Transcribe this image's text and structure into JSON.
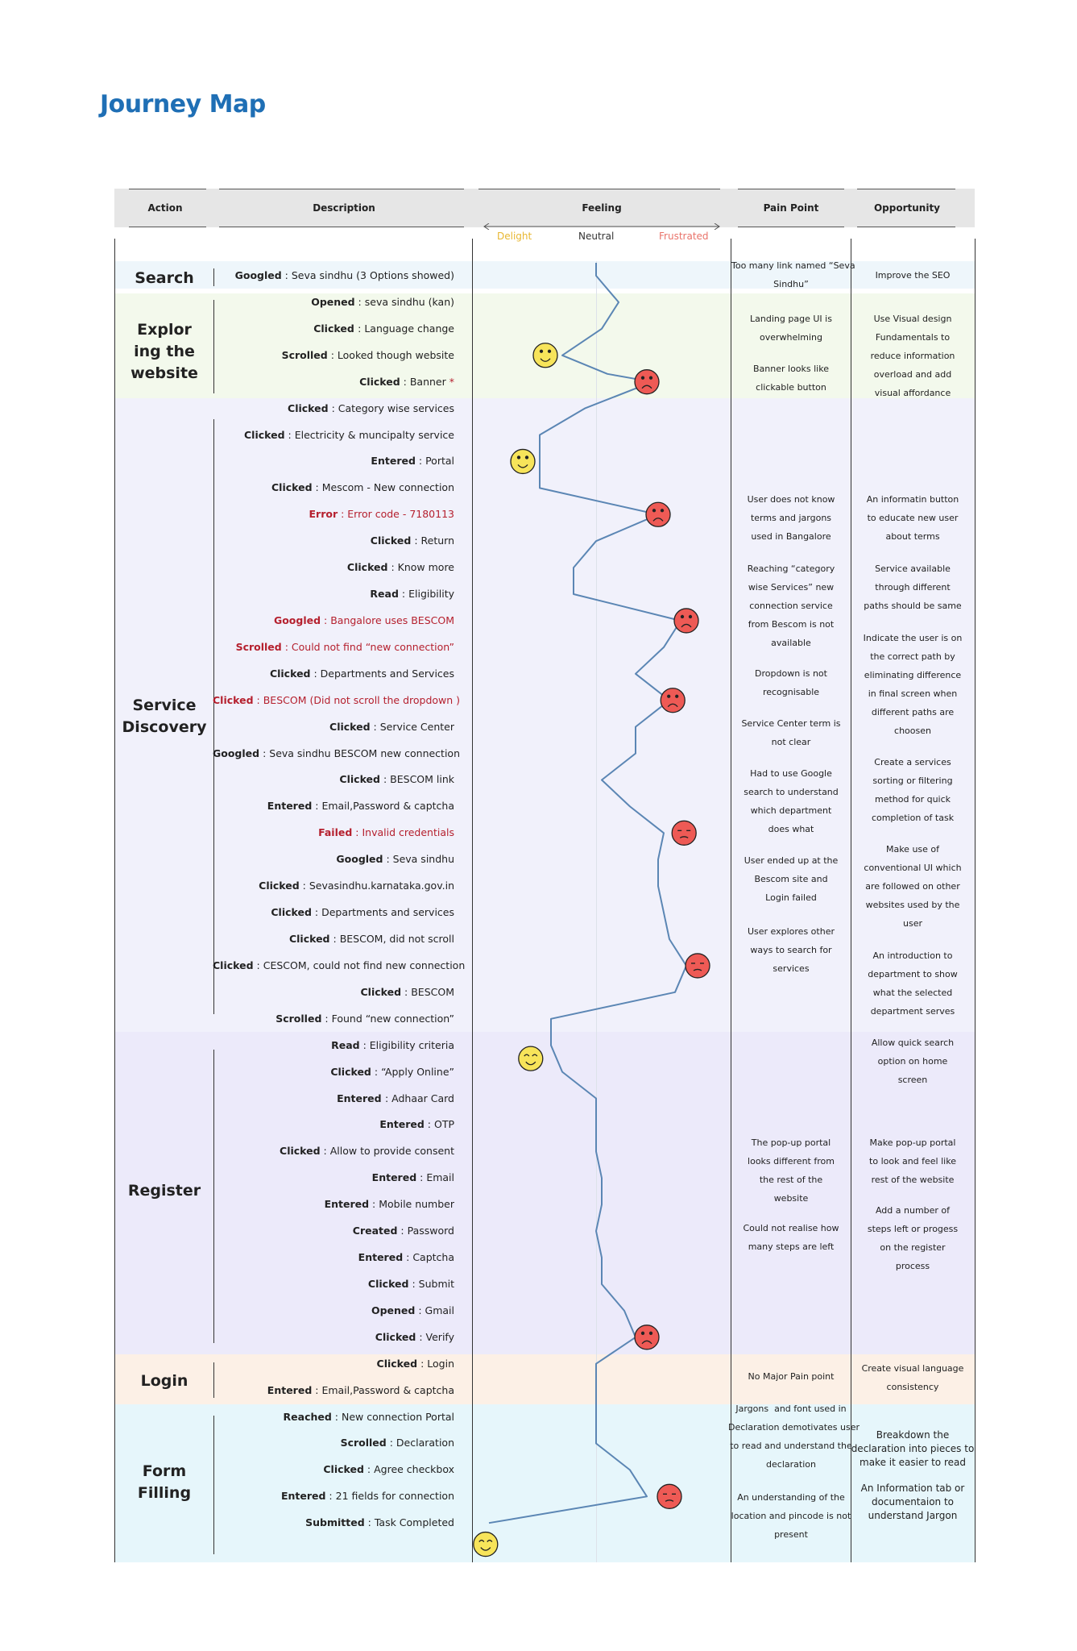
{
  "title": "Journey Map",
  "columns": {
    "action": "Action",
    "description": "Description",
    "feeling": "Feeling",
    "pain_point": "Pain Point",
    "opportunity": "Opportunity"
  },
  "feeling_scale": {
    "delight": "Delight",
    "neutral": "Neutral",
    "frustrated": "Frustrated"
  },
  "colors": {
    "title": "#1f6fb5",
    "delight": "#e8b730",
    "frustrated": "#e9736a",
    "error_text": "#b5202e",
    "curve": "#5b86b4",
    "search_bg": "#eef6fb",
    "explore_bg": "#f3f9ec",
    "discovery_bg": "#f1f1fb",
    "register_bg": "#eceafa",
    "login_bg": "#fcf0e6",
    "form_bg": "#e6f6fb"
  },
  "stages": [
    {
      "name": "Search"
    },
    {
      "name": "Explor\ning the\nwebsite"
    },
    {
      "name": "Service\nDiscovery"
    },
    {
      "name": "Register"
    },
    {
      "name": "Login"
    },
    {
      "name": "Form\nFilling"
    }
  ],
  "rows": [
    {
      "action": "Googled",
      "text": "Seva sindhu (3 Options showed)",
      "error": false
    },
    {
      "action": "Opened",
      "text": "seva sindhu (kan)",
      "error": false
    },
    {
      "action": "Clicked ",
      "text": "Language change",
      "error": false
    },
    {
      "action": "Scrolled",
      "text": "Looked though website",
      "error": false
    },
    {
      "action": "Clicked",
      "text": "Banner",
      "error": false,
      "mark": "*"
    },
    {
      "action": "Clicked",
      "text": "Category wise services",
      "error": false
    },
    {
      "action": "Clicked",
      "text": "Electricity & muncipalty service",
      "error": false
    },
    {
      "action": "Entered",
      "text": "Portal",
      "error": false
    },
    {
      "action": "Clicked",
      "text": "Mescom - New connection",
      "error": false
    },
    {
      "action": "Error",
      "text": "Error code - 7180113",
      "error": true
    },
    {
      "action": "Clicked",
      "text": "Return",
      "error": false
    },
    {
      "action": "Clicked",
      "text": "Know more",
      "error": false
    },
    {
      "action": "Read",
      "text": "Eligibility",
      "error": false
    },
    {
      "action": "Googled",
      "text": "Bangalore uses BESCOM",
      "error": true
    },
    {
      "action": "Scrolled",
      "text": "Could not find “new connection”",
      "error": true
    },
    {
      "action": "Clicked",
      "text": "Departments and Services",
      "error": false
    },
    {
      "action": "Clicked",
      "text": "BESCOM (Did not scroll the dropdown )",
      "error": true
    },
    {
      "action": "Clicked",
      "text": "Service Center",
      "error": false
    },
    {
      "action": "Googled",
      "text": "Seva sindhu BESCOM new connection",
      "error": false
    },
    {
      "action": "Clicked",
      "text": "BESCOM link",
      "error": false
    },
    {
      "action": "Entered",
      "text": "Email,Password & captcha",
      "error": false
    },
    {
      "action": "Failed",
      "text": "Invalid credentials",
      "error": true
    },
    {
      "action": "Googled",
      "text": "Seva sindhu",
      "error": false
    },
    {
      "action": "Clicked",
      "text": "Sevasindhu.karnataka.gov.in",
      "error": false
    },
    {
      "action": "Clicked",
      "text": "Departments and services",
      "error": false
    },
    {
      "action": "Clicked",
      "text": "BESCOM, did not scroll",
      "error": false
    },
    {
      "action": "Clicked",
      "text": "CESCOM, could not find new connection",
      "error": false
    },
    {
      "action": "Clicked",
      "text": "BESCOM",
      "error": false
    },
    {
      "action": "Scrolled",
      "text": "Found “new connection”",
      "error": false
    },
    {
      "action": "Read",
      "text": "Eligibility criteria",
      "error": false
    },
    {
      "action": "Clicked",
      "text": "“Apply Online”",
      "error": false
    },
    {
      "action": "Entered ",
      "text": "Adhaar Card",
      "error": false
    },
    {
      "action": "Entered",
      "text": "OTP",
      "error": false
    },
    {
      "action": "Clicked",
      "text": "Allow to provide consent",
      "error": false
    },
    {
      "action": "Entered",
      "text": "Email",
      "error": false
    },
    {
      "action": "Entered",
      "text": "Mobile number",
      "error": false
    },
    {
      "action": "Created",
      "text": "Password",
      "error": false
    },
    {
      "action": "Entered",
      "text": "Captcha",
      "error": false
    },
    {
      "action": "Clicked",
      "text": "Submit",
      "error": false
    },
    {
      "action": "Opened",
      "text": "Gmail",
      "error": false
    },
    {
      "action": "Clicked",
      "text": "Verify",
      "error": false
    },
    {
      "action": "Clicked",
      "text": "Login",
      "error": false
    },
    {
      "action": "Entered",
      "text": "Email,Password & captcha",
      "error": false
    },
    {
      "action": "Reached",
      "text": "New connection Portal",
      "error": false
    },
    {
      "action": "Scrolled",
      "text": "Declaration",
      "error": false
    },
    {
      "action": "Clicked",
      "text": "Agree checkbox",
      "error": false
    },
    {
      "action": "Entered",
      "text": "21 fields for connection",
      "error": false
    },
    {
      "action": "Submitted",
      "text": "Task Completed",
      "error": false
    }
  ],
  "pain_points": [
    "Too many link named “Seva\nSindhu”",
    "Landing page UI is\noverwhelming",
    "Banner looks like\nclickable button",
    "User does not know\nterms and jargons\nused in Bangalore",
    "Reaching “category\nwise Services” new\nconnection service\nfrom Bescom is not\navailable",
    "Dropdown is not\nrecognisable",
    "Service Center term is\nnot clear",
    "Had to use Google\nsearch to understand\nwhich department\ndoes what",
    "User ended up at the\nBescom site and\nLogin failed",
    "User explores other\nways to search for\nservices",
    "The pop-up portal\nlooks different from\nthe rest of the\nwebsite",
    "Could not realise how\nmany steps are left",
    "No Major Pain point",
    "Jargons  and font used in\nDeclaration demotivates user\nto read and understand the\ndeclaration",
    "An understanding of the\nlocation and pincode is not\npresent"
  ],
  "opportunities": [
    "Improve the SEO",
    "Use Visual design\nFundamentals to\nreduce information\noverload and add\nvisual affordance",
    "An informatin button\nto educate new user\nabout terms",
    "Service available\nthrough different\npaths should be same",
    "Indicate the user is on\nthe correct path by\neliminating difference\nin final screen when\ndifferent paths are\nchoosen",
    "Create a services\nsorting or filtering\nmethod for quick\ncompletion of task",
    "Make use of\nconventional UI which\nare followed on other\nwebsites used by the\nuser",
    "An introduction to\ndepartment to show\nwhat the selected\ndepartment serves",
    "Allow quick search\noption on home\nscreen",
    "Make pop-up portal\nto look and feel like\nrest of the website",
    "Add a number of\nsteps left or progess\non the register\nprocess",
    "Create visual language\nconsistency",
    "Breakdown the\ndeclaration into pieces to\nmake it easier to read",
    "An Information tab or\ndocumentaion to\nunderstand Jargon"
  ],
  "feeling_curve": [
    {
      "row": 0,
      "feeling": 0
    },
    {
      "row": 1,
      "feeling": 0.2
    },
    {
      "row": 2,
      "feeling": 0.05
    },
    {
      "row": 3,
      "feeling": -0.3
    },
    {
      "row": 3.7,
      "feeling": 0.1
    },
    {
      "row": 4,
      "feeling": 0.5
    },
    {
      "row": 5,
      "feeling": -0.1
    },
    {
      "row": 6,
      "feeling": -0.5
    },
    {
      "row": 8,
      "feeling": -0.5
    },
    {
      "row": 9,
      "feeling": 0.55
    },
    {
      "row": 10,
      "feeling": 0
    },
    {
      "row": 11,
      "feeling": -0.2
    },
    {
      "row": 12,
      "feeling": -0.2
    },
    {
      "row": 13,
      "feeling": 0.75
    },
    {
      "row": 14,
      "feeling": 0.6
    },
    {
      "row": 15,
      "feeling": 0.35
    },
    {
      "row": 16,
      "feeling": 0.65
    },
    {
      "row": 17,
      "feeling": 0.35
    },
    {
      "row": 18,
      "feeling": 0.35
    },
    {
      "row": 19,
      "feeling": 0.05
    },
    {
      "row": 20,
      "feeling": 0.3
    },
    {
      "row": 21,
      "feeling": 0.6
    },
    {
      "row": 22,
      "feeling": 0.55
    },
    {
      "row": 23,
      "feeling": 0.55
    },
    {
      "row": 24,
      "feeling": 0.6
    },
    {
      "row": 25,
      "feeling": 0.65
    },
    {
      "row": 26,
      "feeling": 0.8
    },
    {
      "row": 27,
      "feeling": 0.7
    },
    {
      "row": 28,
      "feeling": -0.4
    },
    {
      "row": 29,
      "feeling": -0.4
    },
    {
      "row": 30,
      "feeling": -0.3
    },
    {
      "row": 31,
      "feeling": 0
    },
    {
      "row": 33,
      "feeling": 0
    },
    {
      "row": 34,
      "feeling": 0.05
    },
    {
      "row": 35,
      "feeling": 0.05
    },
    {
      "row": 36,
      "feeling": 0
    },
    {
      "row": 37,
      "feeling": 0.05
    },
    {
      "row": 38,
      "feeling": 0.05
    },
    {
      "row": 39,
      "feeling": 0.25
    },
    {
      "row": 40,
      "feeling": 0.35
    },
    {
      "row": 41,
      "feeling": 0
    },
    {
      "row": 43,
      "feeling": 0
    },
    {
      "row": 44,
      "feeling": 0
    },
    {
      "row": 45,
      "feeling": 0.3
    },
    {
      "row": 46,
      "feeling": 0.45
    },
    {
      "row": 47,
      "feeling": -0.95
    }
  ],
  "emotions": [
    {
      "row": 3,
      "feeling": -0.45,
      "mood": "happy"
    },
    {
      "row": 4,
      "feeling": 0.45,
      "mood": "sad"
    },
    {
      "row": 7,
      "feeling": -0.65,
      "mood": "happy"
    },
    {
      "row": 9,
      "feeling": 0.55,
      "mood": "sad"
    },
    {
      "row": 13,
      "feeling": 0.8,
      "mood": "sad"
    },
    {
      "row": 16,
      "feeling": 0.68,
      "mood": "sad"
    },
    {
      "row": 21,
      "feeling": 0.78,
      "mood": "meh"
    },
    {
      "row": 26,
      "feeling": 0.9,
      "mood": "meh"
    },
    {
      "row": 29.5,
      "feeling": -0.58,
      "mood": "content"
    },
    {
      "row": 40,
      "feeling": 0.45,
      "mood": "sad"
    },
    {
      "row": 46,
      "feeling": 0.65,
      "mood": "meh"
    },
    {
      "row": 47.8,
      "feeling": -0.98,
      "mood": "content"
    }
  ]
}
